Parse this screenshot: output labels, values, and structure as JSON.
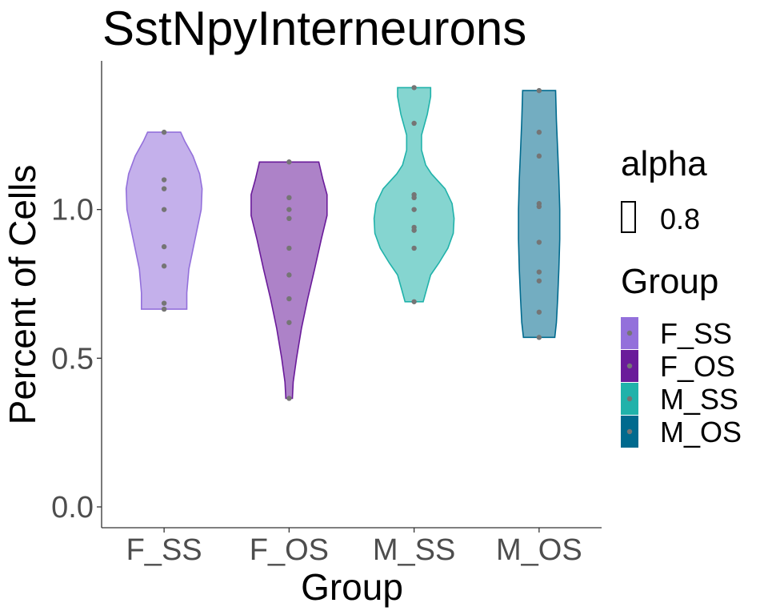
{
  "chart_data": {
    "type": "violin",
    "title": "SstNpyInterneurons",
    "xlabel": "Group",
    "ylabel": "Percent of Cells",
    "categories": [
      "F_SS",
      "F_OS",
      "M_SS",
      "M_OS"
    ],
    "ylim": [
      -0.07,
      1.5
    ],
    "yticks": [
      0.0,
      0.5,
      1.0
    ],
    "ytick_labels": [
      "0.0",
      "0.5",
      "1.0"
    ],
    "grid": false,
    "series": [
      {
        "category": "F_SS",
        "color": "#9370DB",
        "points": [
          1.26,
          1.1,
          1.07,
          1.0,
          0.875,
          0.81,
          0.685,
          0.665
        ],
        "profile": [
          [
            0.665,
            0.55
          ],
          [
            0.72,
            0.55
          ],
          [
            0.8,
            0.6
          ],
          [
            0.9,
            0.75
          ],
          [
            1.0,
            0.9
          ],
          [
            1.07,
            0.92
          ],
          [
            1.12,
            0.86
          ],
          [
            1.18,
            0.7
          ],
          [
            1.23,
            0.5
          ],
          [
            1.26,
            0.4
          ]
        ]
      },
      {
        "category": "F_OS",
        "color": "#6A1B9A",
        "points": [
          1.16,
          1.04,
          1.0,
          0.97,
          0.87,
          0.78,
          0.7,
          0.62,
          0.365
        ],
        "profile": [
          [
            0.365,
            0.08
          ],
          [
            0.42,
            0.1
          ],
          [
            0.5,
            0.18
          ],
          [
            0.6,
            0.3
          ],
          [
            0.7,
            0.45
          ],
          [
            0.8,
            0.62
          ],
          [
            0.9,
            0.78
          ],
          [
            0.98,
            0.92
          ],
          [
            1.05,
            0.92
          ],
          [
            1.1,
            0.82
          ],
          [
            1.16,
            0.72
          ]
        ]
      },
      {
        "category": "M_SS",
        "color": "#20B2AA",
        "points": [
          1.41,
          1.29,
          1.05,
          1.04,
          1.0,
          0.94,
          0.93,
          0.87,
          0.69
        ],
        "profile": [
          [
            0.69,
            0.22
          ],
          [
            0.73,
            0.3
          ],
          [
            0.78,
            0.4
          ],
          [
            0.82,
            0.6
          ],
          [
            0.87,
            0.82
          ],
          [
            0.92,
            0.95
          ],
          [
            0.97,
            0.97
          ],
          [
            1.02,
            0.92
          ],
          [
            1.07,
            0.75
          ],
          [
            1.12,
            0.42
          ],
          [
            1.15,
            0.28
          ],
          [
            1.2,
            0.18
          ],
          [
            1.25,
            0.18
          ],
          [
            1.32,
            0.32
          ],
          [
            1.38,
            0.4
          ],
          [
            1.41,
            0.4
          ]
        ]
      },
      {
        "category": "M_OS",
        "color": "#006A8E",
        "points": [
          1.4,
          1.26,
          1.18,
          1.02,
          1.01,
          0.89,
          0.79,
          0.76,
          0.655,
          0.57
        ],
        "profile": [
          [
            0.57,
            0.38
          ],
          [
            0.62,
            0.42
          ],
          [
            0.7,
            0.45
          ],
          [
            0.8,
            0.48
          ],
          [
            0.9,
            0.5
          ],
          [
            1.0,
            0.5
          ],
          [
            1.1,
            0.48
          ],
          [
            1.2,
            0.45
          ],
          [
            1.3,
            0.42
          ],
          [
            1.4,
            0.4
          ]
        ]
      }
    ],
    "point_color": "#757575",
    "legend": {
      "placement": "right",
      "alpha_title": "alpha",
      "alpha_label": "0.8",
      "group_title": "Group",
      "items": [
        {
          "label": "F_SS",
          "color": "#9370DB"
        },
        {
          "label": "F_OS",
          "color": "#6A1B9A"
        },
        {
          "label": "M_SS",
          "color": "#20B2AA"
        },
        {
          "label": "M_OS",
          "color": "#006A8E"
        }
      ]
    }
  }
}
